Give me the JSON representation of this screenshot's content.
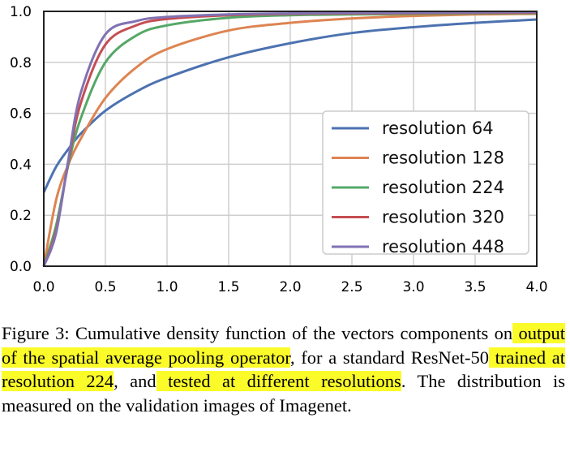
{
  "chart_data": {
    "type": "line",
    "xlim": [
      0.0,
      4.0
    ],
    "ylim": [
      0.0,
      1.0
    ],
    "x_ticks": [
      "0.0",
      "0.5",
      "1.0",
      "1.5",
      "2.0",
      "2.5",
      "3.0",
      "3.5",
      "4.0"
    ],
    "y_ticks": [
      "0.0",
      "0.2",
      "0.4",
      "0.6",
      "0.8",
      "1.0"
    ],
    "grid": true,
    "legend_position": "center-right",
    "x": [
      0,
      0.1,
      0.2,
      0.3,
      0.5,
      0.75,
      1.0,
      1.5,
      2.0,
      2.5,
      3.0,
      3.5,
      4.0
    ],
    "series": [
      {
        "name": "resolution 64",
        "color": "#4c72b0",
        "values": [
          0.29,
          0.39,
          0.46,
          0.52,
          0.61,
          0.685,
          0.74,
          0.82,
          0.875,
          0.915,
          0.938,
          0.955,
          0.968
        ]
      },
      {
        "name": "resolution 128",
        "color": "#dd8452",
        "values": [
          0.0,
          0.26,
          0.4,
          0.5,
          0.66,
          0.78,
          0.852,
          0.925,
          0.955,
          0.972,
          0.982,
          0.988,
          0.99
        ]
      },
      {
        "name": "resolution 224",
        "color": "#55a868",
        "values": [
          0.0,
          0.16,
          0.4,
          0.58,
          0.8,
          0.905,
          0.945,
          0.975,
          0.985,
          0.988,
          0.99,
          0.992,
          0.993
        ]
      },
      {
        "name": "resolution 320",
        "color": "#c44e52",
        "values": [
          0.0,
          0.14,
          0.41,
          0.64,
          0.87,
          0.945,
          0.97,
          0.985,
          0.99,
          0.992,
          0.993,
          0.994,
          0.995
        ]
      },
      {
        "name": "resolution 448",
        "color": "#8172b3",
        "values": [
          0.0,
          0.13,
          0.42,
          0.68,
          0.91,
          0.962,
          0.978,
          0.988,
          0.992,
          0.994,
          0.995,
          0.996,
          0.997
        ]
      }
    ]
  },
  "caption": {
    "p1": "Figure 3:    Cumulative density function of the vectors components on",
    "h1": " output of the spatial average pooling operator",
    "p2": ", for a standard ResNet-50",
    "h2": " trained at resolution 224",
    "p3": ", and",
    "h3": " tested at different resolutions",
    "p4": ". The distribution is measured on the validation images of Imagenet."
  }
}
